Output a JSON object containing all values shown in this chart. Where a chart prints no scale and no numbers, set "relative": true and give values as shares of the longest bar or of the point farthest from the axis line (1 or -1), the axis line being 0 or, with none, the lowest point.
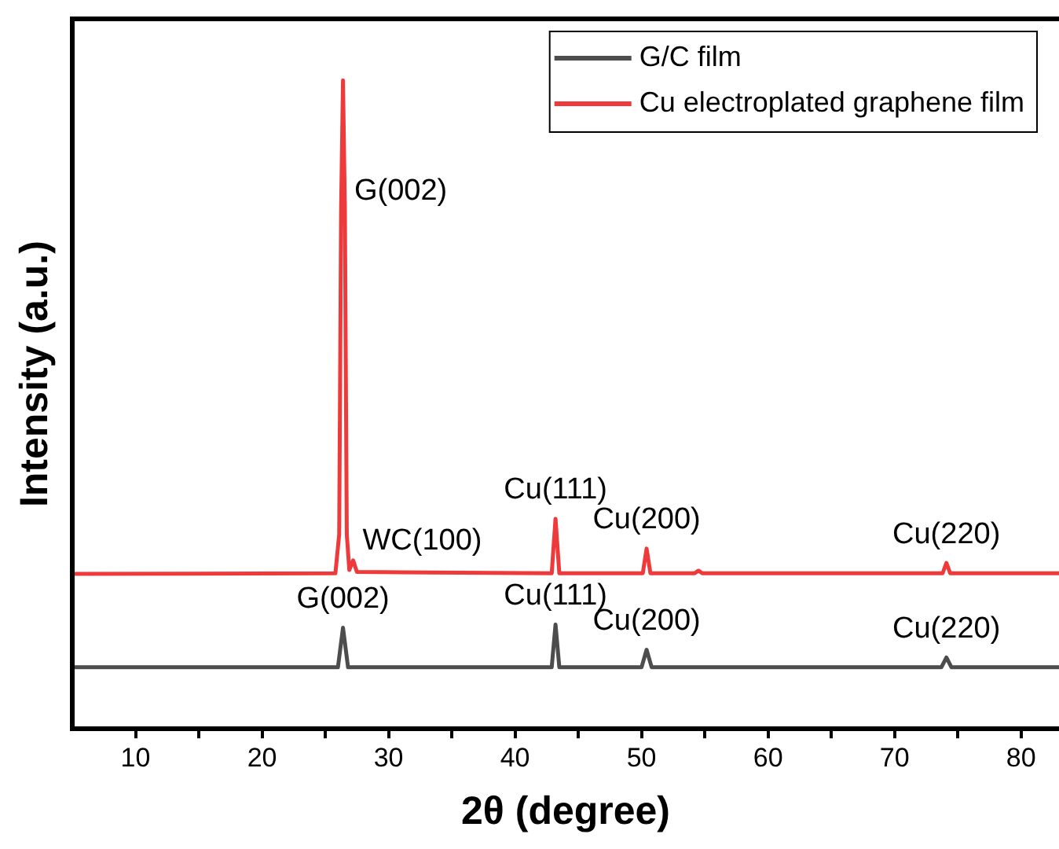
{
  "chart_data": {
    "type": "line",
    "relative": true,
    "xlabel": "2θ (degree)",
    "ylabel": "Intensity (a.u.)",
    "xlim": [
      5,
      83
    ],
    "xticks": [
      10,
      {
        "value": 15,
        "label": null
      },
      20,
      {
        "value": 25,
        "label": null
      },
      30,
      {
        "value": 35,
        "label": null
      },
      40,
      {
        "value": 45,
        "label": null
      },
      50,
      {
        "value": 55,
        "label": null
      },
      60,
      {
        "value": 65,
        "label": null
      },
      70,
      {
        "value": 75,
        "label": null
      },
      80
    ],
    "legend": "top right",
    "marker": "none",
    "line_style": "solid",
    "grid": false,
    "series": [
      {
        "name": "G/C film",
        "color": "#4d4d4d",
        "x": [
          5,
          26.0,
          26.4,
          26.8,
          42.9,
          43.2,
          43.5,
          50.0,
          50.4,
          50.8,
          73.7,
          74.1,
          74.5,
          83
        ],
        "values": [
          0.095,
          0.095,
          0.156,
          0.095,
          0.095,
          0.161,
          0.095,
          0.095,
          0.122,
          0.095,
          0.095,
          0.11,
          0.095,
          0.095
        ]
      },
      {
        "name": "Cu electroplated graphene film",
        "color": "#ee3a3a",
        "x": [
          5,
          25.8,
          26.1,
          26.25,
          26.4,
          26.55,
          26.7,
          26.9,
          27.2,
          27.5,
          42.9,
          43.2,
          43.5,
          50.1,
          50.4,
          50.7,
          54.2,
          54.5,
          54.8,
          73.8,
          74.1,
          74.4,
          83
        ],
        "values": [
          0.239,
          0.24,
          0.3,
          0.8,
          1,
          0.8,
          0.3,
          0.245,
          0.26,
          0.242,
          0.24,
          0.324,
          0.24,
          0.24,
          0.278,
          0.24,
          0.24,
          0.244,
          0.24,
          0.24,
          0.256,
          0.24,
          0.24
        ]
      }
    ],
    "annotations": [
      {
        "text": "G(002)",
        "x": 26.55,
        "y": 0.8
      },
      {
        "text": "WC(100)",
        "x": 27.2,
        "y": 0.26
      },
      {
        "text": "Cu(111)",
        "x": 43.2,
        "y": 0.324
      },
      {
        "text": "Cu(200)",
        "x": 50.4,
        "y": 0.278
      },
      {
        "text": "Cu(220)",
        "x": 74.1,
        "y": 0.256
      },
      {
        "text": "G(002)",
        "x": 26.4,
        "y": 0.156
      },
      {
        "text": "Cu(111)",
        "x": 43.2,
        "y": 0.161
      },
      {
        "text": "Cu(200)",
        "x": 50.4,
        "y": 0.122
      },
      {
        "text": "Cu(220)",
        "x": 74.1,
        "y": 0.11
      }
    ]
  }
}
